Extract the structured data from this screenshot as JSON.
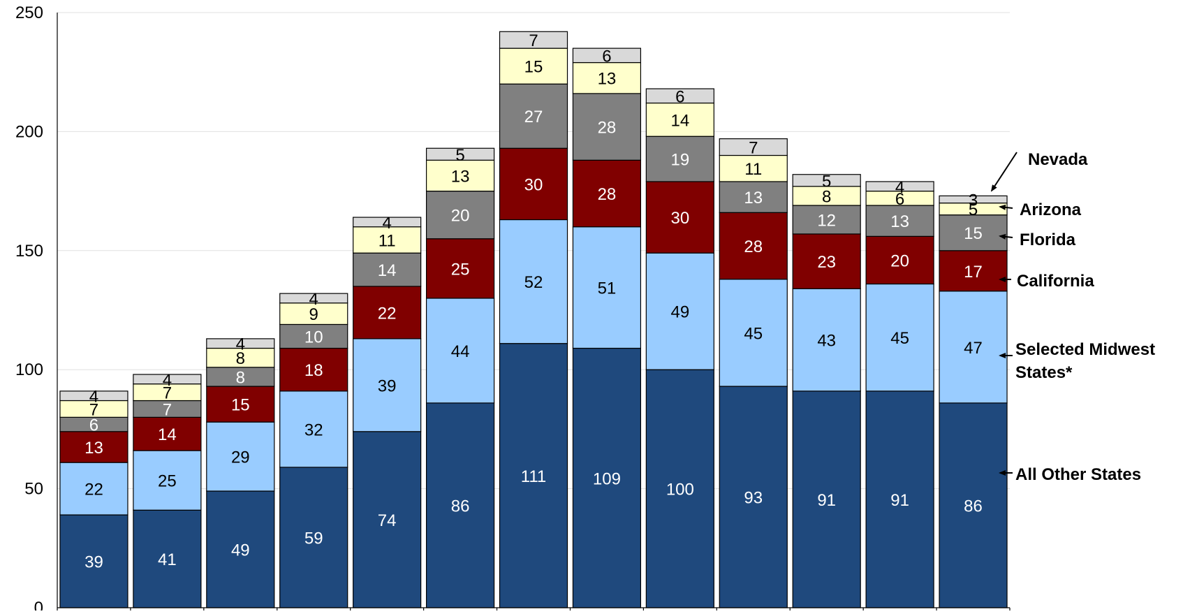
{
  "chart_data": {
    "type": "bar",
    "stacked": true,
    "categories": [
      "",
      "",
      "",
      "",
      "",
      "",
      "",
      "",
      "",
      "",
      "",
      "",
      ""
    ],
    "ylim": [
      0,
      250
    ],
    "yticks": [
      0,
      50,
      100,
      150,
      200,
      250
    ],
    "ytick_labels": [
      "0",
      "50",
      "100",
      "150",
      "200",
      "250"
    ],
    "grid": true,
    "series": [
      {
        "name": "All Other States",
        "color": "#1F497D",
        "label_color": "#FFFFFF",
        "values": [
          39,
          41,
          49,
          59,
          74,
          86,
          111,
          109,
          100,
          93,
          91,
          91,
          86
        ]
      },
      {
        "name": "Selected Midwest States*",
        "color": "#99CCFF",
        "label_color": "#000000",
        "values": [
          22,
          25,
          29,
          32,
          39,
          44,
          52,
          51,
          49,
          45,
          43,
          45,
          47
        ]
      },
      {
        "name": "California",
        "color": "#800000",
        "label_color": "#FFFFFF",
        "values": [
          13,
          14,
          15,
          18,
          22,
          25,
          30,
          28,
          30,
          28,
          23,
          20,
          17
        ]
      },
      {
        "name": "Florida",
        "color": "#808080",
        "label_color": "#FFFFFF",
        "values": [
          6,
          7,
          8,
          10,
          14,
          20,
          27,
          28,
          19,
          13,
          12,
          13,
          15
        ]
      },
      {
        "name": "Arizona",
        "color": "#FFFFCC",
        "label_color": "#000000",
        "values": [
          7,
          7,
          8,
          9,
          11,
          13,
          15,
          13,
          14,
          11,
          8,
          6,
          5
        ]
      },
      {
        "name": "Nevada",
        "color": "#D9D9D9",
        "label_color": "#000000",
        "values": [
          4,
          4,
          4,
          4,
          4,
          5,
          7,
          6,
          6,
          7,
          5,
          4,
          3
        ]
      }
    ],
    "legend": [
      {
        "line1": "Nevada",
        "line2": ""
      },
      {
        "line1": "Arizona",
        "line2": ""
      },
      {
        "line1": "Florida",
        "line2": ""
      },
      {
        "line1": "California",
        "line2": ""
      },
      {
        "line1": "Selected Midwest",
        "line2": "States*"
      },
      {
        "line1": "All Other States",
        "line2": ""
      }
    ],
    "legend_placement": "right"
  }
}
